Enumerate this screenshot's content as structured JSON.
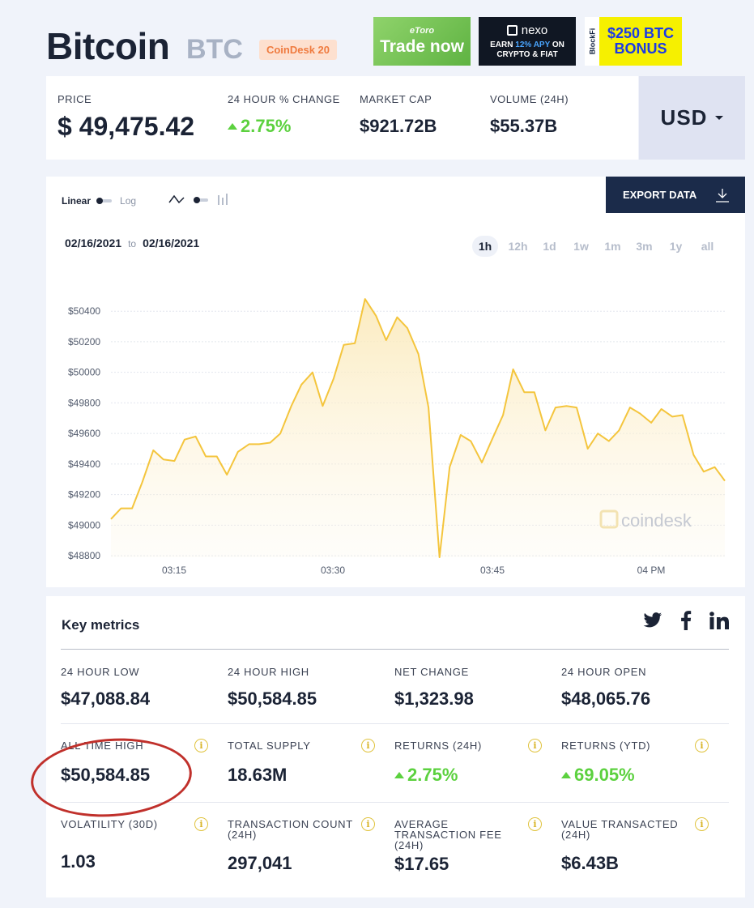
{
  "header": {
    "title": "Bitcoin",
    "ticker": "BTC",
    "badge": "CoinDesk 20"
  },
  "ads": {
    "etoro_brand": "eToro",
    "etoro_cta": "Trade now",
    "nexo_brand": "nexo",
    "nexo_line1_pre": "EARN",
    "nexo_apy": "12% APY",
    "nexo_line1_post": "ON",
    "nexo_line2": "CRYPTO & FIAT",
    "blockfi_brand": "BlockFi",
    "blockfi_line1": "$250 BTC",
    "blockfi_line2": "BONUS"
  },
  "stats": {
    "price_label": "PRICE",
    "price_value": "$ 49,475.42",
    "change_label": "24 HOUR % CHANGE",
    "change_value": "2.75%",
    "mcap_label": "MARKET CAP",
    "mcap_value": "$921.72B",
    "volume_label": "VOLUME (24H)",
    "volume_value": "$55.37B",
    "currency": "USD"
  },
  "chart_controls": {
    "linear": "Linear",
    "log": "Log",
    "export": "EXPORT DATA",
    "date_from": "02/16/2021",
    "date_sep": "to",
    "date_to": "02/16/2021",
    "ranges": [
      "1h",
      "12h",
      "1d",
      "1w",
      "1m",
      "3m",
      "1y",
      "all"
    ],
    "active_range": "1h",
    "watermark": "coindesk"
  },
  "chart_data": {
    "type": "area",
    "x_ticks": [
      "03:15",
      "03:30",
      "03:45",
      "04 PM"
    ],
    "y_ticks": [
      48800,
      49000,
      49200,
      49400,
      49600,
      49800,
      50000,
      50200,
      50400
    ],
    "y_tick_labels": [
      "$48800",
      "$49000",
      "$49200",
      "$49400",
      "$49600",
      "$49800",
      "$50000",
      "$50200",
      "$50400"
    ],
    "ylim": [
      48790,
      50560
    ],
    "x_minutes_range": [
      3.2,
      63
    ],
    "series": [
      {
        "color": "#f4c53d",
        "points": [
          [
            3.2,
            49040
          ],
          [
            4.3,
            49110
          ],
          [
            5.5,
            49110
          ],
          [
            6.6,
            49280
          ],
          [
            7.8,
            49490
          ],
          [
            8.9,
            49430
          ],
          [
            10.1,
            49420
          ],
          [
            11.2,
            49560
          ],
          [
            12.4,
            49580
          ],
          [
            13.5,
            49450
          ],
          [
            14.7,
            49450
          ],
          [
            15.8,
            49330
          ],
          [
            17.0,
            49480
          ],
          [
            18.2,
            49530
          ],
          [
            19.3,
            49530
          ],
          [
            20.5,
            49540
          ],
          [
            21.6,
            49600
          ],
          [
            22.8,
            49780
          ],
          [
            23.9,
            49920
          ],
          [
            25.1,
            50000
          ],
          [
            26.2,
            49780
          ],
          [
            27.4,
            49960
          ],
          [
            28.5,
            50180
          ],
          [
            29.7,
            50190
          ],
          [
            30.8,
            50480
          ],
          [
            32.0,
            50370
          ],
          [
            33.1,
            50210
          ],
          [
            34.3,
            50360
          ],
          [
            35.4,
            50290
          ],
          [
            36.6,
            50120
          ],
          [
            37.7,
            49770
          ],
          [
            38.9,
            48790
          ],
          [
            40.0,
            49380
          ],
          [
            41.2,
            49590
          ],
          [
            42.3,
            49550
          ],
          [
            43.5,
            49410
          ],
          [
            44.6,
            49560
          ],
          [
            45.8,
            49720
          ],
          [
            46.9,
            50020
          ],
          [
            48.1,
            49870
          ],
          [
            49.2,
            49870
          ],
          [
            50.4,
            49620
          ],
          [
            51.5,
            49770
          ],
          [
            52.7,
            49780
          ],
          [
            53.8,
            49770
          ],
          [
            55.0,
            49500
          ],
          [
            56.1,
            49600
          ],
          [
            57.3,
            49550
          ],
          [
            58.4,
            49620
          ],
          [
            59.6,
            49770
          ],
          [
            60.7,
            49730
          ],
          [
            61.9,
            49670
          ],
          [
            63.0,
            49760
          ],
          [
            64.2,
            49710
          ],
          [
            65.3,
            49720
          ],
          [
            66.5,
            49460
          ],
          [
            67.6,
            49350
          ],
          [
            68.8,
            49380
          ],
          [
            69.9,
            49290
          ]
        ]
      }
    ],
    "grid": true,
    "fill": true
  },
  "metrics": {
    "title": "Key metrics",
    "items": [
      {
        "label": "24 HOUR LOW",
        "value": "$47,088.84"
      },
      {
        "label": "24 HOUR HIGH",
        "value": "$50,584.85"
      },
      {
        "label": "NET CHANGE",
        "value": "$1,323.98"
      },
      {
        "label": "24 HOUR OPEN",
        "value": "$48,065.76"
      },
      {
        "label": "ALL TIME HIGH",
        "value": "$50,584.85"
      },
      {
        "label": "TOTAL SUPPLY",
        "value": "18.63M"
      },
      {
        "label": "RETURNS (24H)",
        "value": "2.75%"
      },
      {
        "label": "RETURNS (YTD)",
        "value": "69.05%"
      },
      {
        "label": "VOLATILITY (30D)",
        "value": "1.03"
      },
      {
        "label": "TRANSACTION COUNT (24H)",
        "value": "297,041"
      },
      {
        "label": "AVERAGE TRANSACTION FEE (24H)",
        "value": "$17.65"
      },
      {
        "label": "VALUE TRANSACTED (24H)",
        "value": "$6.43B"
      }
    ],
    "info_glyph": "i"
  }
}
